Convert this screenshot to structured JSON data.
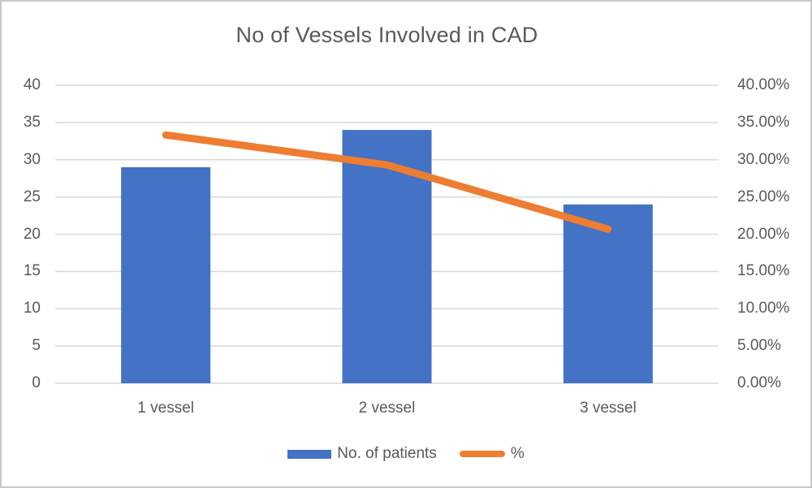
{
  "chart_data": {
    "type": "combo-bar-line",
    "title": "No of Vessels Involved in CAD",
    "categories": [
      "1 vessel",
      "2 vessel",
      "3 vessel"
    ],
    "series": [
      {
        "name": "No. of patients",
        "type": "bar",
        "axis": "left",
        "values": [
          29,
          34,
          24
        ],
        "color": "#4472C4"
      },
      {
        "name": "%",
        "type": "line",
        "axis": "right",
        "values": [
          33.33,
          29.31,
          20.69
        ],
        "color": "#ED7D31"
      }
    ],
    "left_axis": {
      "min": 0,
      "max": 40,
      "step": 5,
      "ticks": [
        "40",
        "35",
        "30",
        "25",
        "20",
        "15",
        "10",
        "5",
        "0"
      ]
    },
    "right_axis": {
      "min": 0,
      "max": 40,
      "step": 5,
      "ticks": [
        "40.00%",
        "35.00%",
        "30.00%",
        "25.00%",
        "20.00%",
        "15.00%",
        "10.00%",
        "5.00%",
        "0.00%"
      ]
    },
    "grid": true,
    "gridline_color": "#D9D9D9",
    "text_color": "#595959",
    "frame_border_color": "#C9C9C9",
    "background_color": "#FFFFFF",
    "legend_position": "bottom"
  }
}
